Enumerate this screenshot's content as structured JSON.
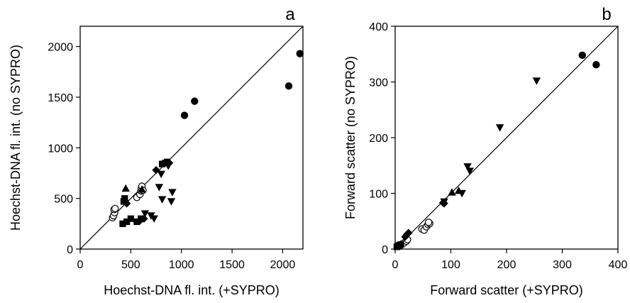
{
  "chart_data": [
    {
      "type": "scatter",
      "panel_label": "a",
      "xlabel": "Hoechst-DNA fl. int. (+SYPRO)",
      "ylabel": "Hoechst-DNA fl. int. (no SYPRO)",
      "xlim": [
        0,
        2200
      ],
      "ylim": [
        0,
        2200
      ],
      "xticks": [
        0,
        500,
        1000,
        1500,
        2000
      ],
      "yticks": [
        0,
        500,
        1000,
        1500,
        2000
      ],
      "grid": false,
      "reference_line": [
        [
          0,
          0
        ],
        [
          2200,
          2200
        ]
      ],
      "series": [
        {
          "marker": "circle-filled",
          "points": [
            [
              1030,
              1320
            ],
            [
              1130,
              1460
            ],
            [
              2060,
              1610
            ],
            [
              2170,
              1930
            ]
          ]
        },
        {
          "marker": "circle-open",
          "points": [
            [
              320,
              310
            ],
            [
              330,
              330
            ],
            [
              340,
              360
            ],
            [
              335,
              390
            ],
            [
              345,
              400
            ],
            [
              560,
              510
            ],
            [
              590,
              540
            ],
            [
              600,
              575
            ],
            [
              605,
              600
            ],
            [
              610,
              620
            ],
            [
              620,
              580
            ]
          ]
        },
        {
          "marker": "square-filled",
          "points": [
            [
              420,
              250
            ],
            [
              460,
              270
            ],
            [
              500,
              300
            ],
            [
              560,
              270
            ],
            [
              600,
              300
            ],
            [
              430,
              470
            ],
            [
              440,
              500
            ],
            [
              810,
              840
            ],
            [
              840,
              850
            ],
            [
              860,
              860
            ]
          ]
        },
        {
          "marker": "diamond-filled",
          "points": [
            [
              440,
              480
            ],
            [
              460,
              450
            ],
            [
              590,
              280
            ],
            [
              630,
              300
            ],
            [
              750,
              780
            ],
            [
              880,
              850
            ]
          ]
        },
        {
          "marker": "triangle-up-filled",
          "points": [
            [
              450,
              600
            ],
            [
              610,
              590
            ]
          ]
        },
        {
          "marker": "triangle-down-filled",
          "points": [
            [
              640,
              350
            ],
            [
              700,
              330
            ],
            [
              730,
              300
            ],
            [
              780,
              610
            ],
            [
              800,
              740
            ],
            [
              810,
              490
            ],
            [
              870,
              820
            ],
            [
              900,
              470
            ],
            [
              910,
              560
            ]
          ]
        }
      ]
    },
    {
      "type": "scatter",
      "panel_label": "b",
      "xlabel": "Forward scatter (+SYPRO)",
      "ylabel": "Forward scatter (no SYPRO)",
      "xlim": [
        0,
        400
      ],
      "ylim": [
        0,
        400
      ],
      "xticks": [
        0,
        100,
        200,
        300,
        400
      ],
      "yticks": [
        0,
        100,
        200,
        300,
        400
      ],
      "grid": false,
      "reference_line": [
        [
          0,
          0
        ],
        [
          400,
          400
        ]
      ],
      "series": [
        {
          "marker": "circle-filled",
          "points": [
            [
              336,
              348
            ],
            [
              361,
              331
            ]
          ]
        },
        {
          "marker": "circle-open",
          "points": [
            [
              12,
              9
            ],
            [
              16,
              11
            ],
            [
              20,
              14
            ],
            [
              22,
              17
            ],
            [
              48,
              36
            ],
            [
              52,
              34
            ],
            [
              56,
              40
            ],
            [
              59,
              44
            ],
            [
              62,
              46
            ],
            [
              60,
              48
            ]
          ]
        },
        {
          "marker": "square-filled",
          "points": [
            [
              3,
              4
            ],
            [
              5,
              6
            ],
            [
              6,
              5
            ],
            [
              8,
              7
            ],
            [
              10,
              8
            ]
          ]
        },
        {
          "marker": "diamond-filled",
          "points": [
            [
              18,
              22
            ],
            [
              21,
              26
            ],
            [
              24,
              29
            ],
            [
              86,
              83
            ],
            [
              88,
              82
            ]
          ]
        },
        {
          "marker": "triangle-up-filled",
          "points": [
            [
              102,
              102
            ],
            [
              114,
              105
            ]
          ]
        },
        {
          "marker": "triangle-down-filled",
          "points": [
            [
              88,
              85
            ],
            [
              120,
              100
            ],
            [
              130,
              148
            ],
            [
              134,
              140
            ],
            [
              188,
              218
            ],
            [
              254,
              302
            ]
          ]
        }
      ]
    }
  ]
}
